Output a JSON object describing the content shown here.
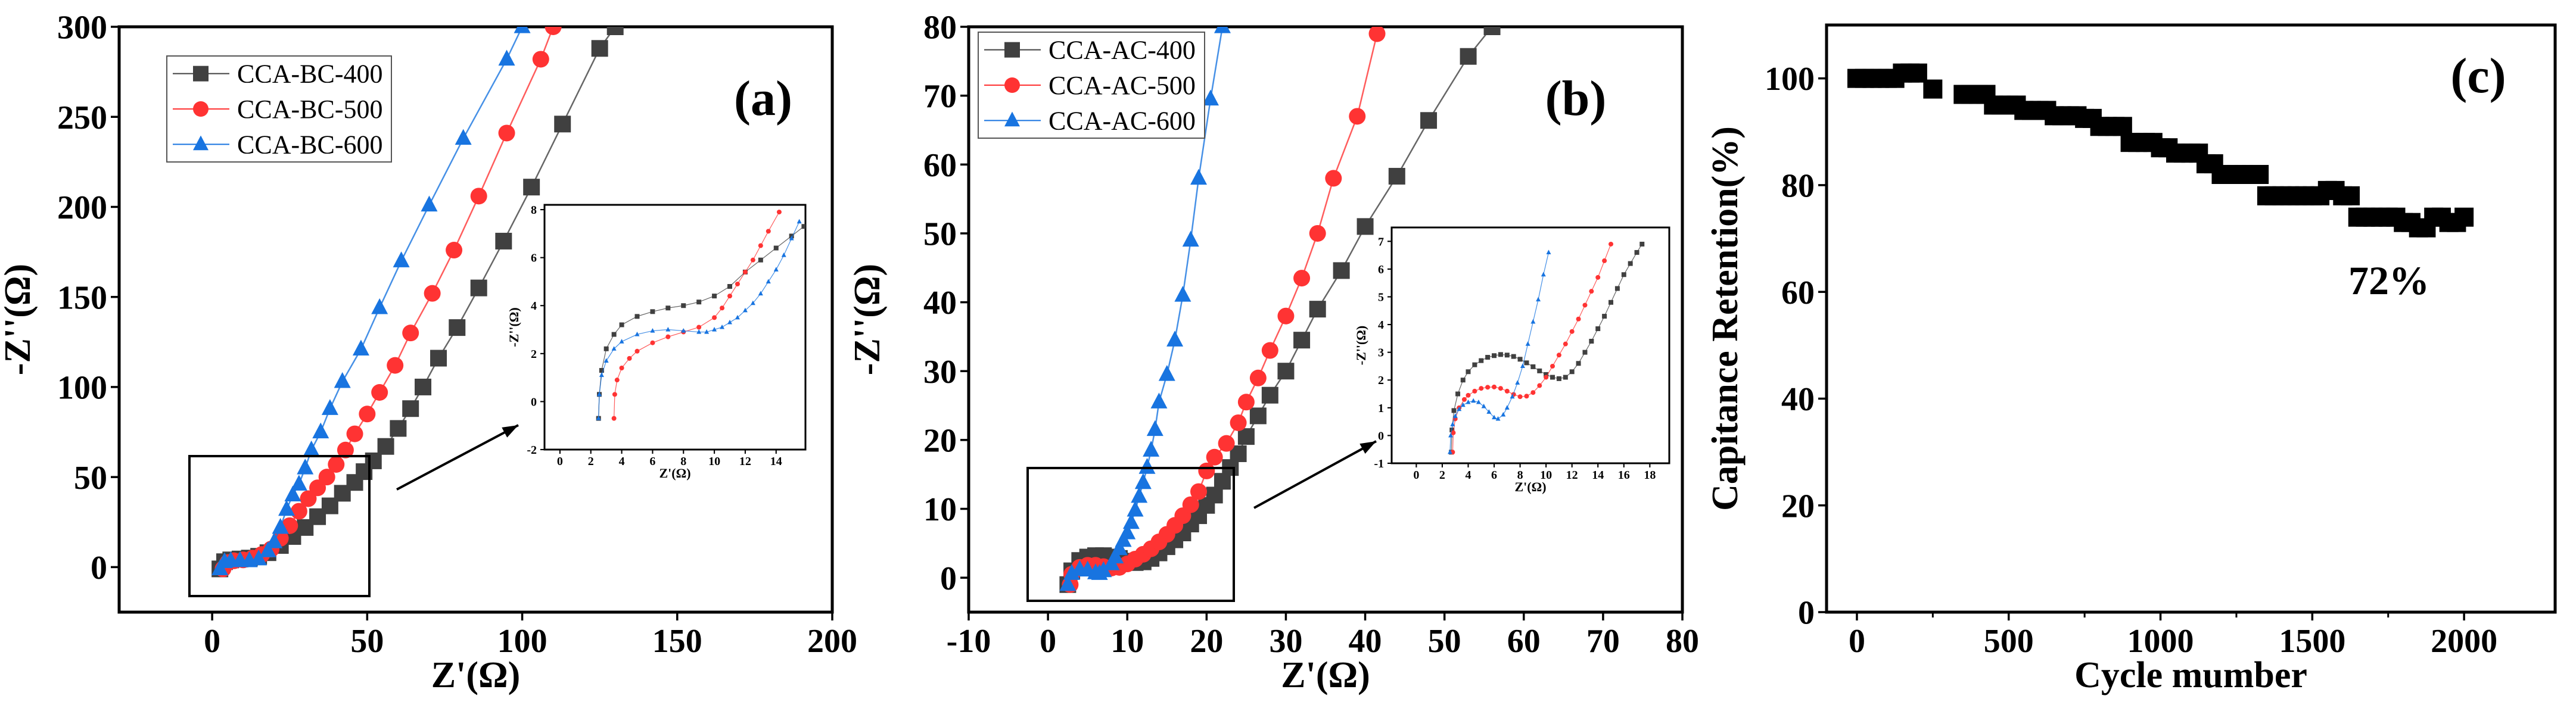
{
  "chart_data": [
    {
      "type": "scatter",
      "panel_label": "(a)",
      "xlabel": "Z'(Ω)",
      "ylabel": "-Z''(Ω)",
      "xlim": [
        -30,
        200
      ],
      "ylim": [
        -25,
        300
      ],
      "xticks": [
        0,
        50,
        100,
        150,
        200
      ],
      "yticks": [
        0,
        50,
        100,
        150,
        200,
        250,
        300
      ],
      "legend": "top-left",
      "series": [
        {
          "name": "CCA-BC-400",
          "marker": "square",
          "color": "#404040",
          "x": [
            2.5,
            4,
            6,
            9,
            12,
            15,
            18,
            22,
            26,
            30,
            34,
            38,
            42,
            46,
            49,
            52,
            56,
            60,
            64,
            68,
            73,
            79,
            86,
            94,
            103,
            113,
            125,
            130
          ],
          "y": [
            -1,
            3,
            4,
            4.5,
            5,
            6,
            8,
            12,
            17,
            22,
            28,
            34,
            41,
            47,
            53,
            59,
            67,
            77,
            88,
            100,
            116,
            133,
            155,
            181,
            211,
            246,
            288,
            300
          ]
        },
        {
          "name": "CCA-BC-500",
          "marker": "circle",
          "color": "#ff3333",
          "x": [
            3.5,
            5,
            7,
            10,
            13,
            16,
            19,
            22,
            25,
            28,
            31,
            34,
            37,
            40,
            43,
            46,
            50,
            54,
            59,
            64,
            71,
            78,
            86,
            95,
            106,
            110
          ],
          "y": [
            -1,
            2.5,
            3.5,
            4,
            5,
            7,
            10,
            16,
            23,
            31,
            38,
            44,
            50,
            57,
            65,
            74,
            85,
            97,
            112,
            130,
            152,
            176,
            206,
            241,
            282,
            300
          ]
        },
        {
          "name": "CCA-BC-600",
          "marker": "triangle",
          "color": "#1874e0",
          "x": [
            2.5,
            4,
            6,
            9,
            12,
            15,
            18,
            20,
            22,
            24,
            26,
            28,
            30,
            32,
            35,
            38,
            42,
            48,
            54,
            61,
            70,
            81,
            95,
            100
          ],
          "y": [
            -1,
            3,
            3.5,
            3.6,
            3.5,
            4.5,
            9,
            14,
            22,
            32,
            40,
            46,
            55,
            65,
            75,
            88,
            103,
            121,
            144,
            170,
            201,
            238,
            282,
            300
          ]
        }
      ],
      "inset": {
        "xlabel": "Z'(Ω)",
        "ylabel": "-Z''(Ω)",
        "xlim": [
          -1,
          15.9
        ],
        "ylim": [
          -2,
          8.2
        ],
        "xticks": [
          0,
          2,
          4,
          6,
          8,
          10,
          12,
          14
        ],
        "yticks": [
          -2,
          0,
          2,
          4,
          6,
          8
        ],
        "series": [
          {
            "x": [
              2.5,
              2.55,
              2.7,
              3,
              3.5,
              4,
              5,
              6,
              7,
              8,
              9,
              10,
              11,
              12,
              13,
              14,
              15,
              15.8
            ],
            "y": [
              -0.7,
              0.3,
              1.3,
              2.2,
              2.8,
              3.2,
              3.55,
              3.75,
              3.9,
              4.0,
              4.15,
              4.4,
              4.8,
              5.4,
              5.9,
              6.4,
              6.9,
              7.3
            ]
          },
          {
            "x": [
              3.5,
              3.55,
              3.7,
              4,
              4.5,
              5,
              6,
              7,
              8,
              9,
              10,
              10.5,
              11,
              11.5,
              12,
              12.5,
              13,
              13.5,
              14.2
            ],
            "y": [
              -0.7,
              0.3,
              0.9,
              1.4,
              1.8,
              2.1,
              2.45,
              2.7,
              2.9,
              3.1,
              3.5,
              3.9,
              4.4,
              4.9,
              5.4,
              5.9,
              6.5,
              7.1,
              7.9
            ]
          },
          {
            "x": [
              2.5,
              2.55,
              2.7,
              3,
              3.5,
              4,
              5,
              6,
              7,
              8,
              9,
              9.5,
              10,
              10.5,
              11,
              11.5,
              12,
              12.5,
              13,
              13.5,
              14,
              14.5,
              15,
              15.5
            ],
            "y": [
              -0.7,
              0.3,
              1.1,
              1.7,
              2.2,
              2.5,
              2.8,
              2.95,
              3.0,
              2.95,
              2.9,
              2.9,
              3.0,
              3.1,
              3.3,
              3.5,
              3.8,
              4.1,
              4.5,
              5.0,
              5.5,
              6.1,
              6.8,
              7.5
            ]
          }
        ]
      }
    },
    {
      "type": "scatter",
      "panel_label": "(b)",
      "xlabel": "Z'(Ω)",
      "ylabel": "-Z''(Ω)",
      "xlim": [
        -10,
        80
      ],
      "ylim": [
        -5,
        80
      ],
      "xticks": [
        -10,
        0,
        10,
        20,
        30,
        40,
        50,
        60,
        70,
        80
      ],
      "yticks": [
        0,
        10,
        20,
        30,
        40,
        50,
        60,
        70,
        80
      ],
      "legend": "top-left",
      "series": [
        {
          "name": "CCA-AC-400",
          "marker": "square",
          "color": "#404040",
          "x": [
            2.5,
            3,
            4,
            5,
            6,
            7,
            8,
            9,
            10,
            11,
            12,
            13,
            14,
            15,
            16,
            17,
            18,
            19,
            20,
            21,
            22,
            23,
            24,
            25,
            26.5,
            28,
            30,
            32,
            34,
            37,
            40,
            44,
            48,
            53,
            56
          ],
          "y": [
            -1,
            1,
            2.5,
            3,
            3.2,
            3.2,
            3,
            2.8,
            2.4,
            2.2,
            2.3,
            2.8,
            3.6,
            4.5,
            5.5,
            6.5,
            7.8,
            9,
            10.5,
            12,
            14,
            16,
            18,
            20.5,
            23.5,
            26.5,
            30,
            34.5,
            39,
            44.6,
            51,
            58.3,
            66.4,
            75.7,
            80
          ]
        },
        {
          "name": "CCA-AC-500",
          "marker": "circle",
          "color": "#ff3333",
          "x": [
            2.8,
            3,
            4,
            5,
            6,
            7,
            8,
            9,
            10,
            11,
            12,
            13,
            14,
            15,
            16,
            17,
            18,
            19,
            20,
            21,
            22.5,
            24,
            25,
            26.5,
            28,
            30,
            32,
            34,
            36,
            39,
            41.5
          ],
          "y": [
            -1,
            0.5,
            1.5,
            1.8,
            1.8,
            1.6,
            1.4,
            1.5,
            2,
            2.7,
            3.4,
            4.2,
            5.2,
            6.3,
            7.6,
            9,
            10.6,
            12.5,
            15.5,
            17.5,
            19.5,
            22.5,
            25.5,
            29,
            33,
            38,
            43.5,
            50,
            58,
            67,
            79
          ]
        },
        {
          "name": "CCA-AC-600",
          "marker": "triangle",
          "color": "#1874e0",
          "x": [
            2.5,
            3,
            4,
            5,
            6,
            6.5,
            7,
            8,
            8.5,
            9,
            9.5,
            10,
            10.5,
            11,
            11.5,
            12,
            12.5,
            13,
            13.5,
            14,
            15,
            16,
            17,
            18,
            19,
            20.5,
            22,
            23
          ],
          "y": [
            -1,
            0.6,
            1.2,
            1.1,
            0.7,
            0.6,
            1,
            2,
            3,
            4.2,
            5.4,
            6.5,
            8,
            9.8,
            11.8,
            13.8,
            16,
            18.5,
            21.5,
            25.5,
            29.5,
            34.5,
            41,
            49,
            58,
            69.5,
            80,
            84
          ]
        }
      ],
      "inset": {
        "xlabel": "Z'(Ω)",
        "ylabel": "-Z''(Ω)",
        "xlim": [
          -1.9,
          19.5
        ],
        "ylim": [
          -1,
          7.5
        ],
        "xticks": [
          0,
          2,
          4,
          6,
          8,
          10,
          12,
          14,
          16,
          18
        ],
        "yticks": [
          -1,
          0,
          1,
          2,
          3,
          4,
          5,
          6,
          7
        ],
        "series": [
          {
            "x": [
              2.7,
              2.75,
              2.9,
              3.2,
              3.6,
              4,
              4.5,
              5,
              5.5,
              6,
              6.5,
              7,
              7.5,
              8,
              8.5,
              9,
              9.5,
              10,
              10.5,
              11,
              11.5,
              12,
              12.5,
              13,
              13.5,
              14,
              14.5,
              15,
              15.5,
              16,
              16.5,
              17,
              17.4
            ],
            "y": [
              -0.6,
              0.2,
              0.9,
              1.5,
              2,
              2.3,
              2.55,
              2.7,
              2.82,
              2.88,
              2.92,
              2.9,
              2.85,
              2.75,
              2.62,
              2.48,
              2.33,
              2.2,
              2.1,
              2.05,
              2.1,
              2.3,
              2.6,
              3.0,
              3.4,
              3.85,
              4.3,
              4.8,
              5.3,
              5.8,
              6.2,
              6.6,
              6.9
            ]
          },
          {
            "x": [
              2.8,
              2.85,
              3,
              3.3,
              3.7,
              4,
              4.5,
              5,
              5.5,
              6,
              6.5,
              7,
              7.5,
              8,
              8.5,
              9,
              9.5,
              10,
              10.5,
              11,
              11.5,
              12,
              12.5,
              13,
              13.5,
              14,
              14.5,
              15
            ],
            "y": [
              -0.6,
              0.1,
              0.6,
              1,
              1.3,
              1.45,
              1.6,
              1.7,
              1.74,
              1.75,
              1.7,
              1.6,
              1.48,
              1.4,
              1.42,
              1.55,
              1.8,
              2.1,
              2.5,
              2.9,
              3.3,
              3.75,
              4.2,
              4.7,
              5.2,
              5.7,
              6.3,
              6.9
            ]
          },
          {
            "x": [
              2.6,
              2.65,
              2.8,
              3,
              3.3,
              3.6,
              4,
              4.4,
              4.8,
              5.2,
              5.6,
              6,
              6.3,
              6.7,
              7,
              7.4,
              7.8,
              8.2,
              8.6,
              9,
              9.4,
              9.8,
              10.2
            ],
            "y": [
              -0.6,
              0,
              0.4,
              0.7,
              0.95,
              1.1,
              1.2,
              1.25,
              1.2,
              1.05,
              0.85,
              0.65,
              0.6,
              0.75,
              1.0,
              1.4,
              1.9,
              2.5,
              3.3,
              4.1,
              4.9,
              5.8,
              6.6
            ]
          }
        ]
      }
    },
    {
      "type": "scatter",
      "panel_label": "(c)",
      "xlabel": "Cycle mumber",
      "ylabel": "Capitance Retention(%)",
      "xlim": [
        -100,
        2300
      ],
      "ylim": [
        0,
        110
      ],
      "xticks": [
        0,
        500,
        1000,
        1500,
        2000
      ],
      "yticks": [
        0,
        20,
        40,
        60,
        80,
        100
      ],
      "annotation": "72%",
      "series": [
        {
          "name": "retention",
          "marker": "square",
          "color": "#000000",
          "x": [
            0,
            25,
            50,
            75,
            100,
            125,
            150,
            175,
            200,
            250,
            350,
            375,
            400,
            425,
            450,
            475,
            500,
            525,
            550,
            575,
            600,
            625,
            650,
            675,
            700,
            725,
            750,
            775,
            800,
            825,
            850,
            875,
            900,
            925,
            950,
            975,
            1000,
            1025,
            1050,
            1075,
            1100,
            1125,
            1150,
            1175,
            1200,
            1225,
            1250,
            1275,
            1300,
            1325,
            1350,
            1375,
            1400,
            1425,
            1450,
            1475,
            1500,
            1525,
            1550,
            1575,
            1600,
            1625,
            1650,
            1675,
            1700,
            1725,
            1750,
            1775,
            1800,
            1825,
            1850,
            1875,
            1900,
            1925,
            1950,
            1975,
            2000
          ],
          "y": [
            100,
            100,
            100,
            100,
            100,
            100,
            101,
            101,
            101,
            98,
            97,
            97,
            97,
            97,
            95,
            95,
            95,
            95,
            94,
            94,
            94,
            94,
            93,
            93,
            93,
            93,
            92.5,
            92.5,
            91,
            91,
            91,
            91,
            88,
            88,
            88,
            88,
            87,
            87,
            86,
            86,
            86,
            86,
            84,
            84,
            82,
            82,
            82,
            82,
            82,
            82,
            78,
            78,
            78,
            78,
            78,
            78,
            78,
            78,
            79,
            79,
            78,
            78,
            74,
            74,
            74,
            74,
            74,
            74,
            73,
            73,
            72,
            72,
            74,
            74,
            73,
            73,
            74
          ]
        }
      ]
    }
  ]
}
